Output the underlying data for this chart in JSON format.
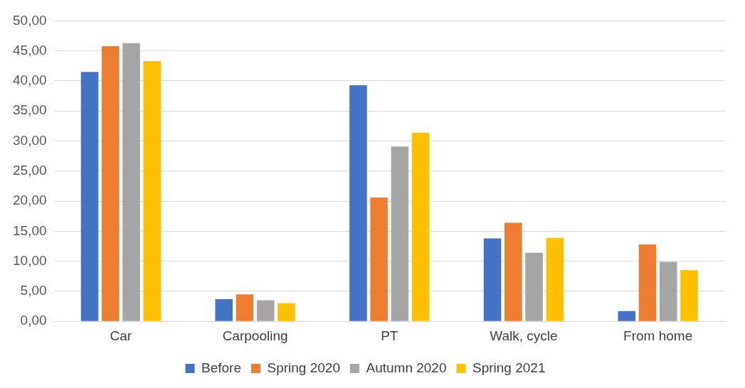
{
  "chart_data": {
    "type": "bar",
    "categories": [
      "Car",
      "Carpooling",
      "PT",
      "Walk, cycle",
      "From home"
    ],
    "series": [
      {
        "name": "Before",
        "color": "#4472c4",
        "values": [
          41.5,
          3.7,
          39.3,
          13.8,
          1.7
        ]
      },
      {
        "name": "Spring 2020",
        "color": "#ed7d31",
        "values": [
          45.8,
          4.5,
          20.6,
          16.4,
          12.8
        ]
      },
      {
        "name": "Autumn 2020",
        "color": "#a5a5a5",
        "values": [
          46.3,
          3.5,
          29.1,
          11.4,
          9.9
        ]
      },
      {
        "name": "Spring 2021",
        "color": "#ffc000",
        "values": [
          43.3,
          3.0,
          31.4,
          13.9,
          8.5
        ]
      }
    ],
    "ylim": [
      0,
      50
    ],
    "yticks": [
      {
        "value": 0,
        "label": "0,00"
      },
      {
        "value": 5,
        "label": "5,00"
      },
      {
        "value": 10,
        "label": "10,00"
      },
      {
        "value": 15,
        "label": "15,00"
      },
      {
        "value": 20,
        "label": "20,00"
      },
      {
        "value": 25,
        "label": "25,00"
      },
      {
        "value": 30,
        "label": "30,00"
      },
      {
        "value": 35,
        "label": "35,00"
      },
      {
        "value": 40,
        "label": "40,00"
      },
      {
        "value": 45,
        "label": "45,00"
      },
      {
        "value": 50,
        "label": "50,00"
      }
    ],
    "grid": "y",
    "legend": "bottom"
  }
}
